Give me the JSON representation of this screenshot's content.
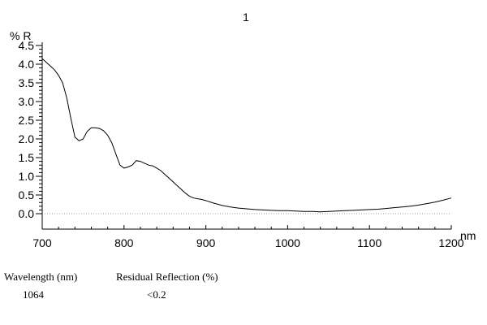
{
  "chart_data": {
    "type": "line",
    "title": "1",
    "ylabel": "% R",
    "xlabel": "nm",
    "xlim": [
      700,
      1200
    ],
    "ylim": [
      0,
      4.5
    ],
    "x_ticks": [
      "700",
      "800",
      "900",
      "1000",
      "1100",
      "1200"
    ],
    "y_ticks": [
      "0.0",
      "0.5",
      "1.0",
      "1.5",
      "2.0",
      "2.5",
      "3.0",
      "3.5",
      "4.0",
      "4.5"
    ],
    "baseline_dotted": 0.0,
    "series": [
      {
        "x": [
          700,
          705,
          710,
          715,
          720,
          725,
          730,
          735,
          740,
          745,
          750,
          755,
          760,
          765,
          770,
          775,
          780,
          785,
          790,
          795,
          800,
          805,
          810,
          815,
          820,
          825,
          830,
          835,
          840,
          845,
          850,
          855,
          860,
          865,
          870,
          875,
          880,
          885,
          890,
          895,
          900,
          910,
          920,
          930,
          940,
          950,
          960,
          970,
          980,
          990,
          1000,
          1010,
          1020,
          1030,
          1040,
          1050,
          1060,
          1070,
          1080,
          1090,
          1100,
          1110,
          1120,
          1130,
          1140,
          1150,
          1160,
          1170,
          1180,
          1190,
          1200
        ],
        "values": [
          4.15,
          4.05,
          3.95,
          3.85,
          3.7,
          3.5,
          3.1,
          2.55,
          2.05,
          1.95,
          2.0,
          2.2,
          2.3,
          2.3,
          2.28,
          2.22,
          2.1,
          1.9,
          1.6,
          1.3,
          1.22,
          1.25,
          1.3,
          1.42,
          1.4,
          1.35,
          1.3,
          1.28,
          1.22,
          1.15,
          1.05,
          0.95,
          0.85,
          0.75,
          0.65,
          0.55,
          0.47,
          0.42,
          0.4,
          0.38,
          0.35,
          0.28,
          0.22,
          0.18,
          0.15,
          0.13,
          0.11,
          0.1,
          0.09,
          0.08,
          0.08,
          0.07,
          0.06,
          0.06,
          0.05,
          0.06,
          0.07,
          0.08,
          0.09,
          0.1,
          0.11,
          0.12,
          0.14,
          0.16,
          0.18,
          0.2,
          0.23,
          0.27,
          0.31,
          0.36,
          0.42
        ]
      }
    ]
  },
  "info": {
    "col1_header": "Wavelength (nm)",
    "col2_header": "Residual Reflection (%)",
    "col1_value": "1064",
    "col2_value": "<0.2"
  }
}
